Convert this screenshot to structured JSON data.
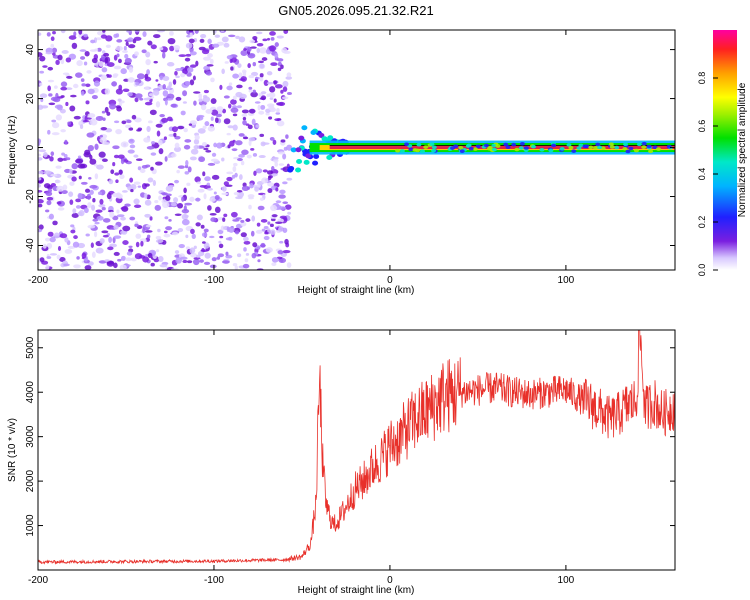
{
  "title": "GN05.2026.095.21.32.R21",
  "colors": {
    "snr_line": "#e8302a",
    "scatter_purple": "#7a1fe0",
    "spectral_core": "#e0204a"
  },
  "chart_data": [
    {
      "type": "heatmap",
      "name": "spectrogram",
      "xlabel": "Height of straight line (km)",
      "ylabel": "Frequency (Hz)",
      "xlim": [
        -200,
        162
      ],
      "ylim": [
        -50,
        48
      ],
      "xticks": [
        -200,
        -100,
        0,
        100
      ],
      "xtick_labels": [
        "-200",
        "-100",
        "0",
        "100"
      ],
      "yticks": [
        -40,
        -20,
        0,
        20,
        40
      ],
      "ytick_labels": [
        "-40",
        "-20",
        "0",
        "20",
        "40"
      ],
      "noise_region_x": [
        -200,
        -57
      ],
      "signal_region_x": [
        -57,
        162
      ],
      "signal_frequency_hz": 0,
      "colorbar": {
        "label": "Normalized spectral amplitude",
        "range": [
          0.0,
          1.0
        ],
        "ticks": [
          0.0,
          0.2,
          0.4,
          0.6,
          0.8
        ],
        "tick_labels": [
          "0.0",
          "0.2",
          "0.4",
          "0.6",
          "0.8"
        ]
      }
    },
    {
      "type": "line",
      "name": "snr",
      "xlabel": "Height of straight line (km)",
      "ylabel": "SNR (10 * v/v)",
      "xlim": [
        -200,
        162
      ],
      "ylim": [
        0,
        5400
      ],
      "xticks": [
        -200,
        -100,
        0,
        100
      ],
      "xtick_labels": [
        "-200",
        "-100",
        "0",
        "100"
      ],
      "yticks": [
        1000,
        2000,
        3000,
        4000,
        5000
      ],
      "ytick_labels": [
        "1000",
        "2000",
        "3000",
        "4000",
        "5000"
      ],
      "series": [
        {
          "name": "SNR",
          "x": [
            -200,
            -150,
            -100,
            -60,
            -50,
            -45,
            -42,
            -40,
            -38,
            -36,
            -32,
            -28,
            -24,
            -20,
            -15,
            -10,
            -5,
            0,
            5,
            10,
            15,
            20,
            25,
            30,
            40,
            50,
            60,
            70,
            80,
            90,
            100,
            110,
            115,
            120,
            125,
            130,
            135,
            140,
            142,
            145,
            150,
            155,
            162
          ],
          "y": [
            180,
            190,
            200,
            230,
            300,
            600,
            1500,
            4300,
            2200,
            1400,
            1000,
            1200,
            1500,
            1800,
            2000,
            2300,
            2500,
            2800,
            2950,
            3200,
            3400,
            3550,
            3700,
            3900,
            4000,
            4050,
            4100,
            4000,
            3950,
            4000,
            4050,
            3800,
            3700,
            3550,
            3400,
            3500,
            3700,
            3800,
            5400,
            3600,
            3800,
            3500,
            3700
          ]
        }
      ]
    }
  ]
}
